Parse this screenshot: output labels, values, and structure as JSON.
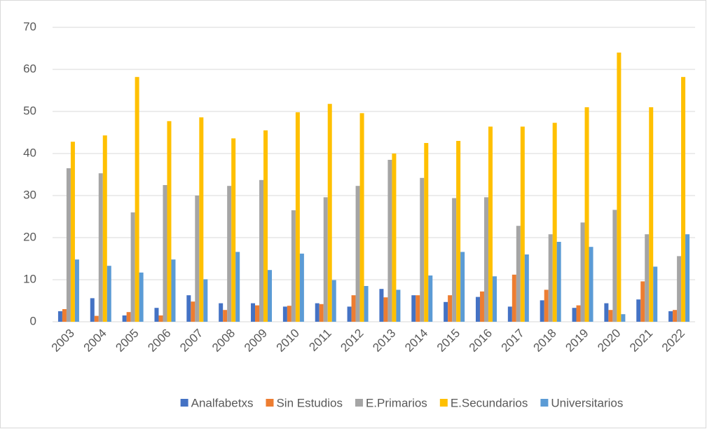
{
  "chart_data": {
    "type": "bar",
    "categories": [
      "2003",
      "2004",
      "2005",
      "2006",
      "2007",
      "2008",
      "2009",
      "2010",
      "2011",
      "2012",
      "2013",
      "2014",
      "2015",
      "2016",
      "2017",
      "2018",
      "2019",
      "2020",
      "2021",
      "2022"
    ],
    "series": [
      {
        "name": "Analfabetxs",
        "color": "#4472c4",
        "values": [
          2.5,
          5.6,
          1.5,
          3.3,
          6.3,
          4.4,
          4.4,
          3.6,
          4.4,
          3.6,
          7.8,
          6.3,
          4.7,
          5.9,
          3.6,
          5.1,
          3.3,
          4.4,
          5.3,
          2.5
        ]
      },
      {
        "name": "Sin Estudios",
        "color": "#ed7d31",
        "values": [
          3,
          1.4,
          2.3,
          1.5,
          4.8,
          2.8,
          3.9,
          3.8,
          4.2,
          6.3,
          5.8,
          6.3,
          6.3,
          7.2,
          11.2,
          7.6,
          3.9,
          2.8,
          9.6,
          2.8
        ]
      },
      {
        "name": "E.Primarios",
        "color": "#a5a5a5",
        "values": [
          36.5,
          35.3,
          26,
          32.5,
          30,
          32.3,
          33.7,
          26.5,
          29.6,
          32.3,
          38.5,
          34.2,
          29.4,
          29.6,
          22.8,
          20.8,
          23.6,
          26.6,
          20.8,
          15.6
        ]
      },
      {
        "name": "E.Secundarios",
        "color": "#ffc000",
        "values": [
          42.8,
          44.3,
          58.2,
          47.7,
          48.6,
          43.6,
          45.5,
          49.8,
          51.8,
          49.6,
          40,
          42.5,
          43,
          46.4,
          46.4,
          47.3,
          51,
          64,
          51,
          58.2
        ]
      },
      {
        "name": "Universitarios",
        "color": "#5b9bd5",
        "values": [
          14.8,
          13.3,
          11.7,
          14.8,
          10.1,
          16.6,
          12.3,
          16.2,
          9.9,
          8.5,
          7.6,
          11,
          16.6,
          10.8,
          16,
          19,
          17.8,
          1.8,
          13.1,
          20.8
        ]
      }
    ],
    "ylim": [
      0,
      70
    ],
    "yticks": [
      0,
      10,
      20,
      30,
      40,
      50,
      60,
      70
    ],
    "grid": true,
    "legend": "bottom"
  }
}
